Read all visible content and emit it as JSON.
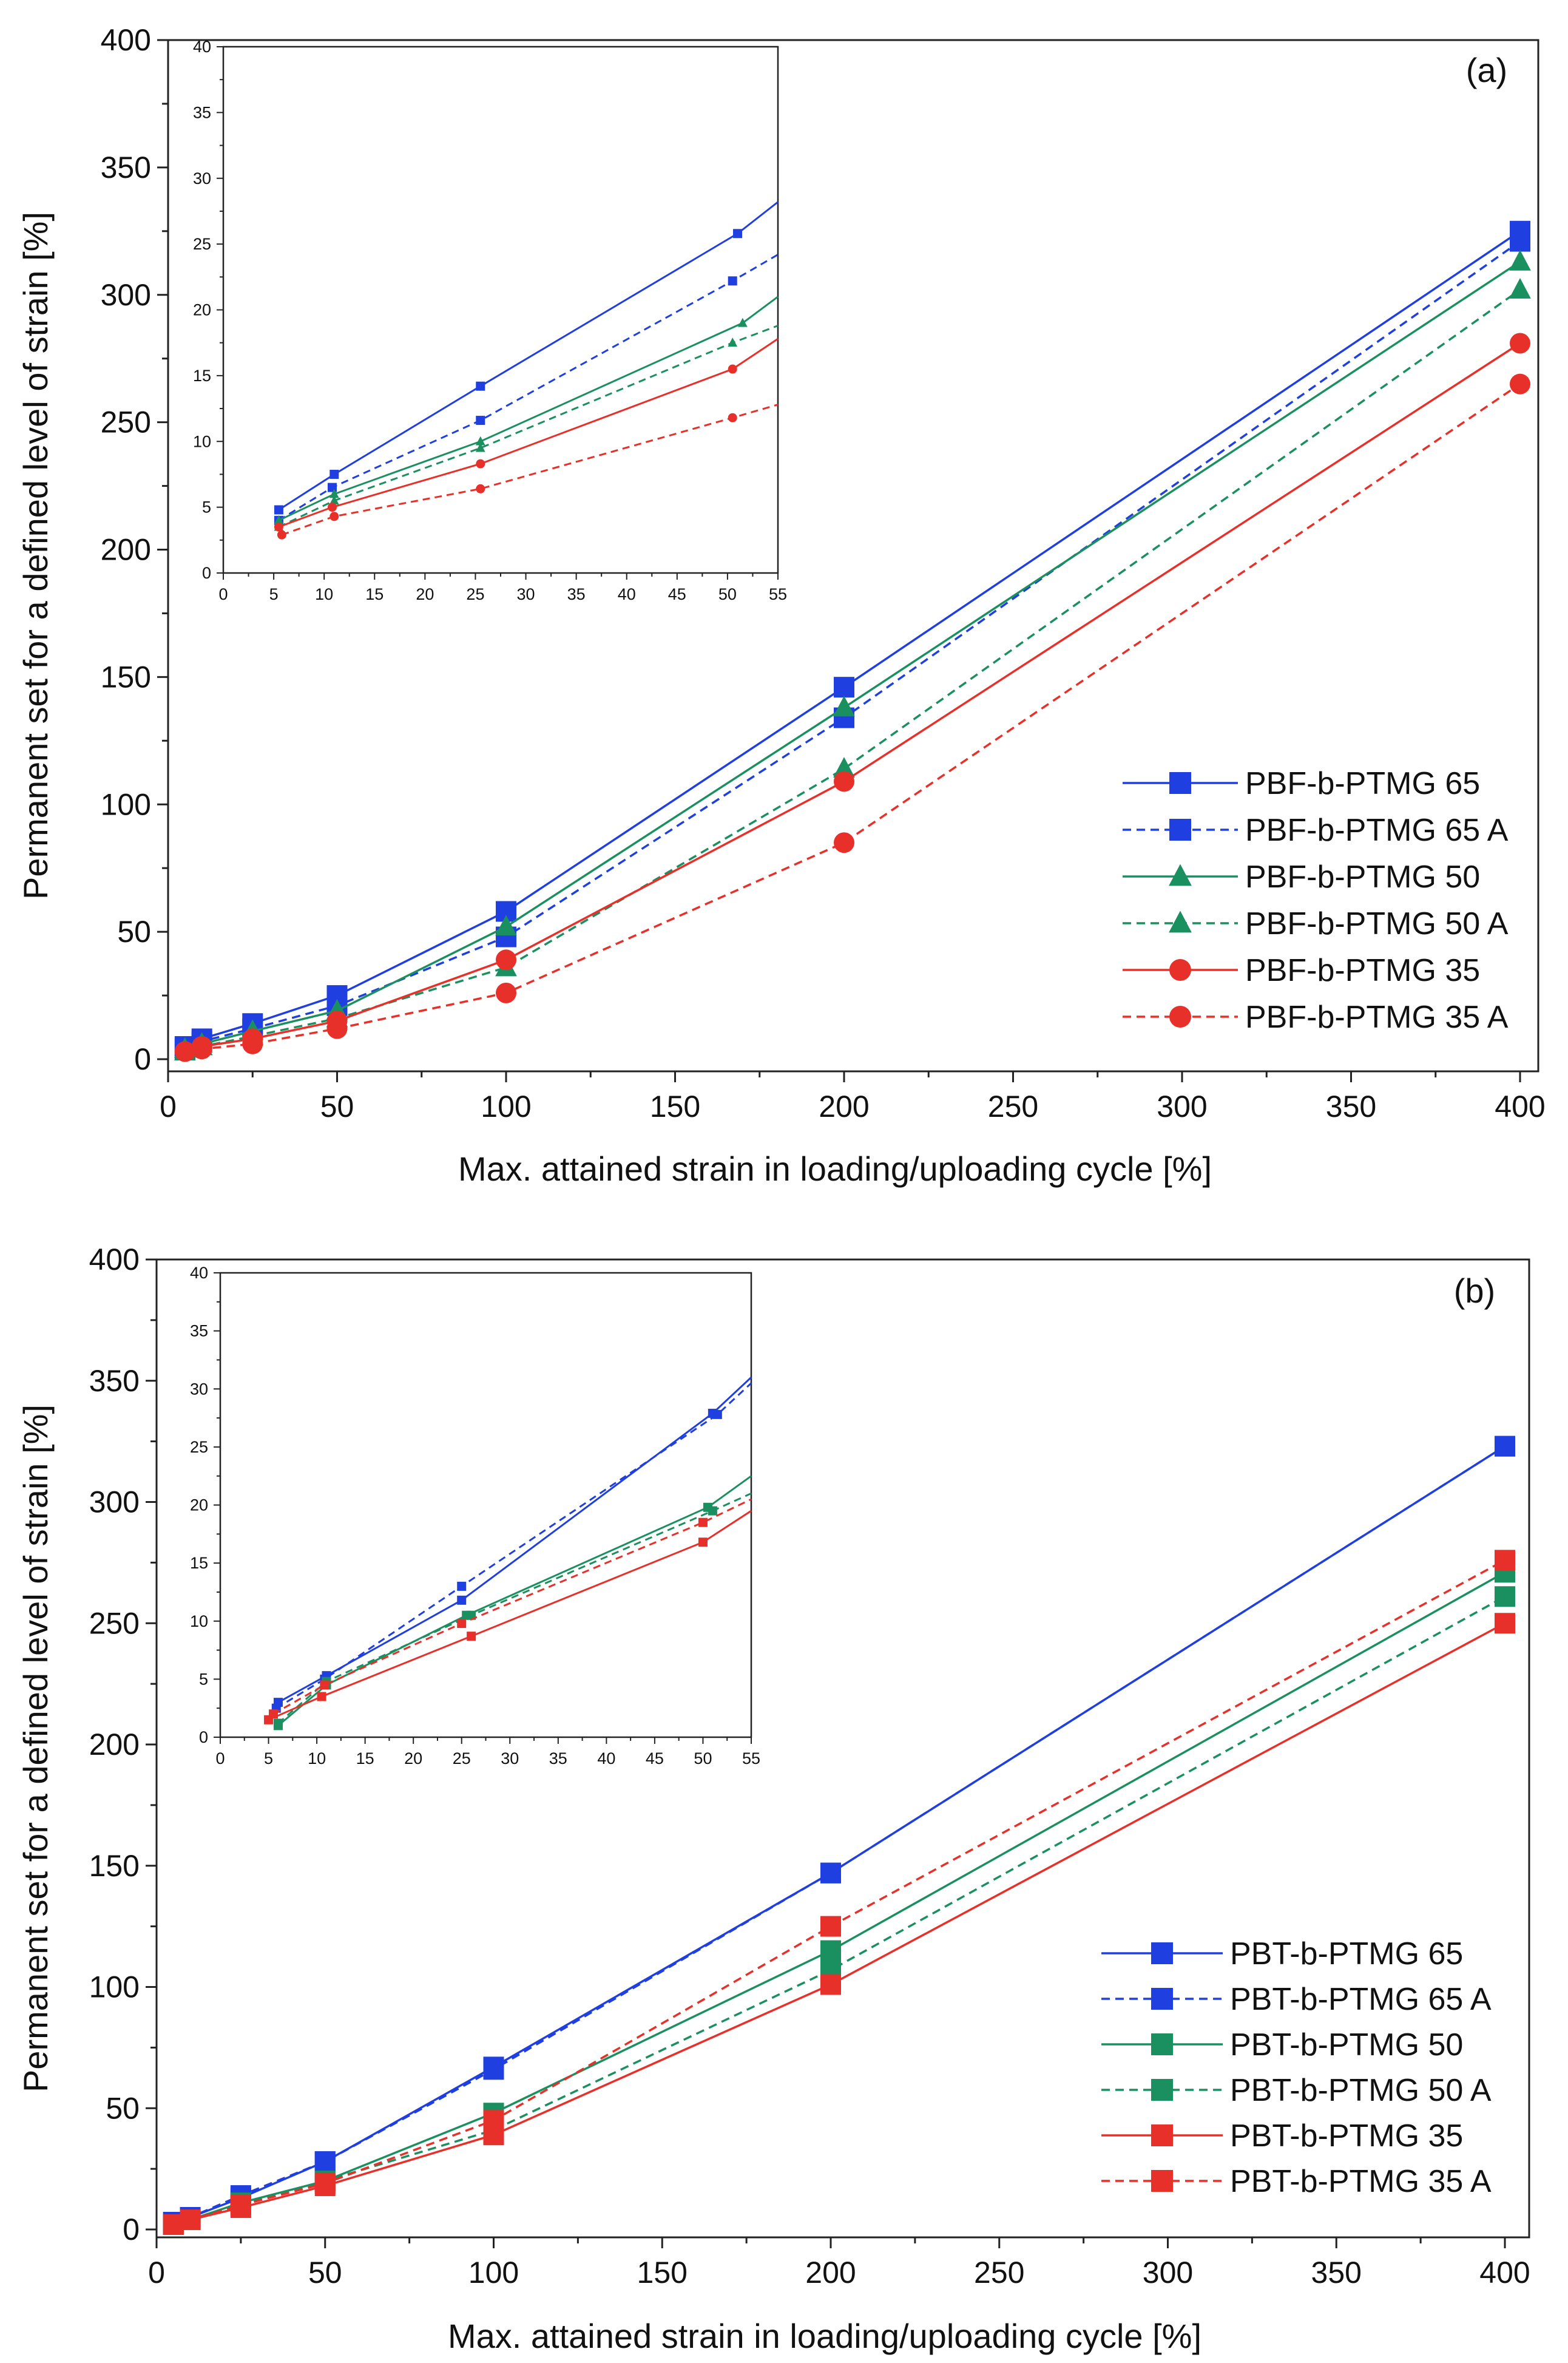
{
  "chart_data": [
    {
      "id": "a",
      "type": "line",
      "panel_label": "(a)",
      "xlabel": "Max. attained strain in loading/uploading cycle [%]",
      "ylabel": "Permanent set for a defined level of strain [%]",
      "xlim": [
        0,
        400
      ],
      "ylim": [
        0,
        400
      ],
      "xticks": [
        0,
        50,
        100,
        150,
        200,
        250,
        300,
        350,
        400
      ],
      "yticks": [
        0,
        50,
        100,
        150,
        200,
        250,
        300,
        350,
        400
      ],
      "legend_position": "lower-right",
      "series": [
        {
          "name": "PBF-b-PTMG 65",
          "color": "#1f3fe0",
          "marker": "square",
          "dash": "solid",
          "x": [
            5,
            10,
            25,
            50,
            100,
            200,
            400
          ],
          "y": [
            5,
            8,
            14,
            25,
            58,
            146,
            325
          ]
        },
        {
          "name": "PBF-b-PTMG 65 A",
          "color": "#1f3fe0",
          "marker": "square",
          "dash": "dash",
          "x": [
            5,
            10,
            25,
            50,
            100,
            200,
            400
          ],
          "y": [
            4,
            7,
            12,
            21,
            48,
            134,
            321
          ]
        },
        {
          "name": "PBF-b-PTMG 50",
          "color": "#1a8f60",
          "marker": "triangle",
          "dash": "solid",
          "x": [
            5,
            10,
            25,
            50,
            100,
            200,
            400
          ],
          "y": [
            4,
            6,
            11,
            19,
            52,
            138,
            313
          ]
        },
        {
          "name": "PBF-b-PTMG 50 A",
          "color": "#1a8f60",
          "marker": "triangle",
          "dash": "dash",
          "x": [
            5,
            10,
            25,
            50,
            100,
            200,
            400
          ],
          "y": [
            3,
            5,
            9,
            16,
            36,
            114,
            302
          ]
        },
        {
          "name": "PBF-b-PTMG 35",
          "color": "#e8302a",
          "marker": "circle",
          "dash": "solid",
          "x": [
            5,
            10,
            25,
            50,
            100,
            200,
            400
          ],
          "y": [
            3,
            5,
            8,
            15,
            39,
            109,
            281
          ]
        },
        {
          "name": "PBF-b-PTMG 35 A",
          "color": "#e8302a",
          "marker": "circle",
          "dash": "dash",
          "x": [
            5,
            10,
            25,
            50,
            100,
            200,
            400
          ],
          "y": [
            3,
            4,
            6,
            12,
            26,
            85,
            265
          ]
        }
      ],
      "inset": {
        "xlim": [
          0,
          55
        ],
        "ylim": [
          0,
          40
        ],
        "xticks": [
          0,
          5,
          10,
          15,
          20,
          25,
          30,
          35,
          40,
          45,
          50,
          55
        ],
        "yticks": [
          0,
          5,
          10,
          15,
          20,
          25,
          30,
          35,
          40
        ],
        "series": [
          {
            "name": "PBF-b-PTMG 65",
            "x": [
              5.5,
              11,
              25.5,
              51,
              55
            ],
            "y": [
              4.8,
              7.5,
              14.2,
              25.8,
              28.2
            ]
          },
          {
            "name": "PBF-b-PTMG 65 A",
            "x": [
              5.5,
              10.8,
              25.5,
              50.5,
              55
            ],
            "y": [
              4.0,
              6.5,
              11.6,
              22.2,
              24.2
            ]
          },
          {
            "name": "PBF-b-PTMG 50",
            "x": [
              5.5,
              11,
              25.5,
              51.5,
              55
            ],
            "y": [
              4.0,
              6.0,
              10.0,
              19.0,
              21.0
            ]
          },
          {
            "name": "PBF-b-PTMG 50 A",
            "x": [
              5.5,
              11,
              25.5,
              50.5,
              55
            ],
            "y": [
              3.5,
              5.5,
              9.5,
              17.5,
              18.8
            ]
          },
          {
            "name": "PBF-b-PTMG 35",
            "x": [
              5.5,
              10.8,
              25.5,
              50.5,
              55
            ],
            "y": [
              3.5,
              5.0,
              8.3,
              15.5,
              17.8
            ]
          },
          {
            "name": "PBF-b-PTMG 35 A",
            "x": [
              5.8,
              11,
              25.5,
              50.5,
              55
            ],
            "y": [
              2.9,
              4.3,
              6.4,
              11.8,
              12.8
            ]
          }
        ]
      }
    },
    {
      "id": "b",
      "type": "line",
      "panel_label": "(b)",
      "xlabel": "Max. attained strain in loading/uploading cycle [%]",
      "ylabel": "Permanent set for a defined level of strain [%]",
      "xlim": [
        0,
        400
      ],
      "ylim": [
        0,
        400
      ],
      "xticks": [
        0,
        50,
        100,
        150,
        200,
        250,
        300,
        350,
        400
      ],
      "yticks": [
        0,
        50,
        100,
        150,
        200,
        250,
        300,
        350,
        400
      ],
      "legend_position": "lower-right",
      "series": [
        {
          "name": "PBT-b-PTMG 65",
          "color": "#1f3fe0",
          "marker": "square",
          "dash": "solid",
          "x": [
            5,
            10,
            25,
            50,
            100,
            200,
            400
          ],
          "y": [
            3,
            5,
            13,
            28,
            67,
            147,
            323
          ]
        },
        {
          "name": "PBT-b-PTMG 65 A",
          "color": "#1f3fe0",
          "marker": "square",
          "dash": "dash",
          "x": [
            5,
            10,
            25,
            50,
            100,
            200,
            400
          ],
          "y": [
            3,
            5,
            14,
            28,
            66,
            147,
            323
          ]
        },
        {
          "name": "PBT-b-PTMG 50",
          "color": "#1a8f60",
          "marker": "square",
          "dash": "solid",
          "x": [
            5,
            10,
            25,
            50,
            100,
            200,
            400
          ],
          "y": [
            2,
            4,
            11,
            20,
            48,
            115,
            271
          ]
        },
        {
          "name": "PBT-b-PTMG 50 A",
          "color": "#1a8f60",
          "marker": "square",
          "dash": "dash",
          "x": [
            5,
            10,
            25,
            50,
            100,
            200,
            400
          ],
          "y": [
            2,
            4,
            10,
            20,
            41,
            107,
            261
          ]
        },
        {
          "name": "PBT-b-PTMG 35",
          "color": "#e8302a",
          "marker": "square",
          "dash": "solid",
          "x": [
            5,
            10,
            25,
            50,
            100,
            200,
            400
          ],
          "y": [
            2,
            4,
            9,
            18,
            39,
            101,
            250
          ]
        },
        {
          "name": "PBT-b-PTMG 35 A",
          "color": "#e8302a",
          "marker": "square",
          "dash": "dash",
          "x": [
            5,
            10,
            25,
            50,
            100,
            200,
            400
          ],
          "y": [
            2,
            4,
            10,
            19,
            45,
            125,
            276
          ]
        }
      ],
      "inset": {
        "xlim": [
          0,
          55
        ],
        "ylim": [
          0,
          40
        ],
        "xticks": [
          0,
          5,
          10,
          15,
          20,
          25,
          30,
          35,
          40,
          45,
          50,
          55
        ],
        "yticks": [
          0,
          5,
          10,
          15,
          20,
          25,
          30,
          35,
          40
        ],
        "series": [
          {
            "name": "PBT-b-PTMG 65",
            "x": [
              6,
              11,
              25,
              51,
              55
            ],
            "y": [
              3.0,
              5.3,
              11.8,
              27.9,
              31.0
            ]
          },
          {
            "name": "PBT-b-PTMG 65 A",
            "x": [
              5.8,
              10.8,
              25,
              51.5,
              55
            ],
            "y": [
              2.5,
              5.0,
              13.0,
              27.8,
              30.5
            ]
          },
          {
            "name": "PBT-b-PTMG 50",
            "x": [
              6,
              11,
              25.5,
              50.5,
              55
            ],
            "y": [
              1.0,
              4.5,
              10.5,
              19.8,
              22.5
            ]
          },
          {
            "name": "PBT-b-PTMG 50 A",
            "x": [
              6,
              11,
              26,
              51,
              55
            ],
            "y": [
              1.2,
              4.8,
              10.5,
              19.5,
              21.0
            ]
          },
          {
            "name": "PBT-b-PTMG 35",
            "x": [
              5,
              10.5,
              26,
              50,
              55
            ],
            "y": [
              1.5,
              3.5,
              8.7,
              16.8,
              19.5
            ]
          },
          {
            "name": "PBT-b-PTMG 35 A",
            "x": [
              5.5,
              10.8,
              25,
              50,
              55
            ],
            "y": [
              2.0,
              4.5,
              9.8,
              18.5,
              20.5
            ]
          }
        ]
      }
    }
  ]
}
